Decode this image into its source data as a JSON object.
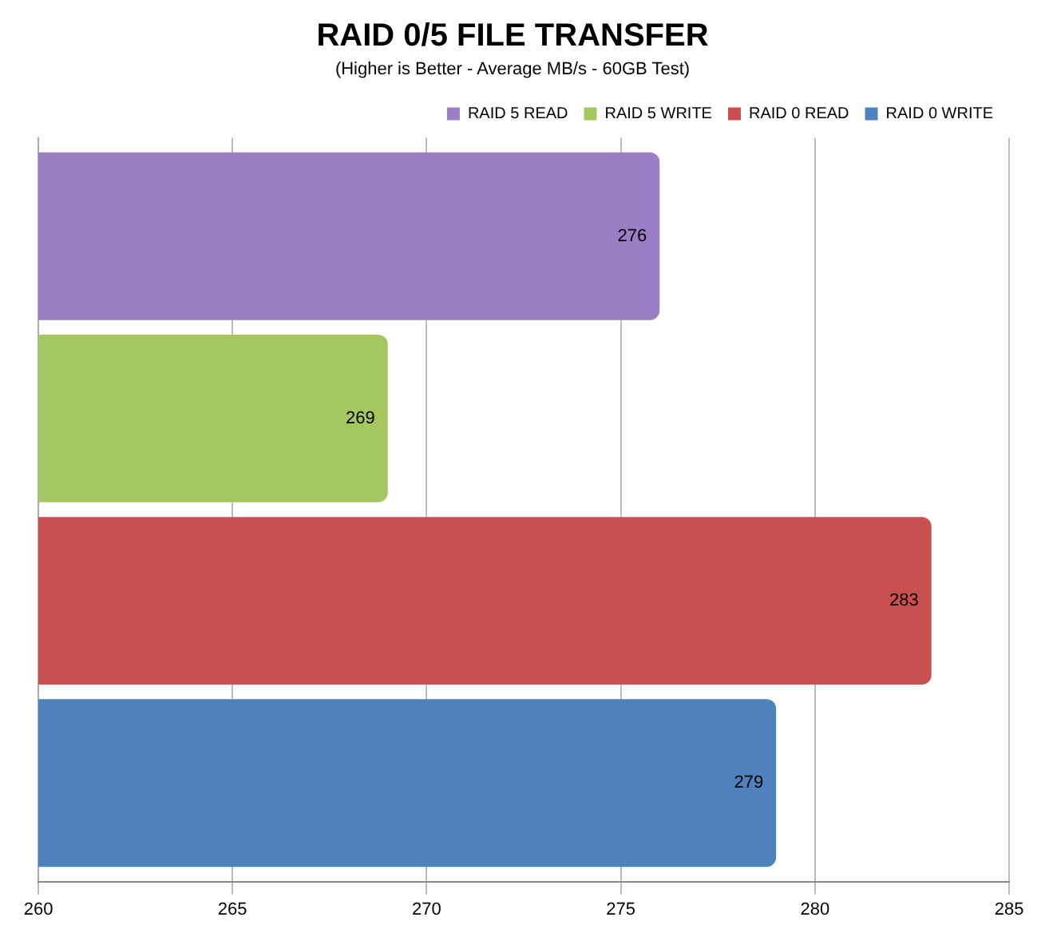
{
  "chart_data": {
    "type": "bar",
    "orientation": "horizontal",
    "title": "RAID 0/5 FILE TRANSFER",
    "subtitle": "(Higher is Better - Average MB/s - 60GB Test)",
    "categories": [
      null
    ],
    "series": [
      {
        "name": "RAID 5 READ",
        "color": "#9b7fc4",
        "values": [
          276
        ]
      },
      {
        "name": "RAID 5 WRITE",
        "color": "#a4c85f",
        "values": [
          269
        ]
      },
      {
        "name": "RAID 0 READ",
        "color": "#c9504e",
        "values": [
          283
        ]
      },
      {
        "name": "RAID 0 WRITE",
        "color": "#4f81bd",
        "values": [
          279
        ]
      }
    ],
    "xlim": [
      260,
      285
    ],
    "xticks": [
      260,
      265,
      270,
      275,
      280,
      285
    ],
    "grid": "x",
    "legend": "top right",
    "data_labels": true
  }
}
